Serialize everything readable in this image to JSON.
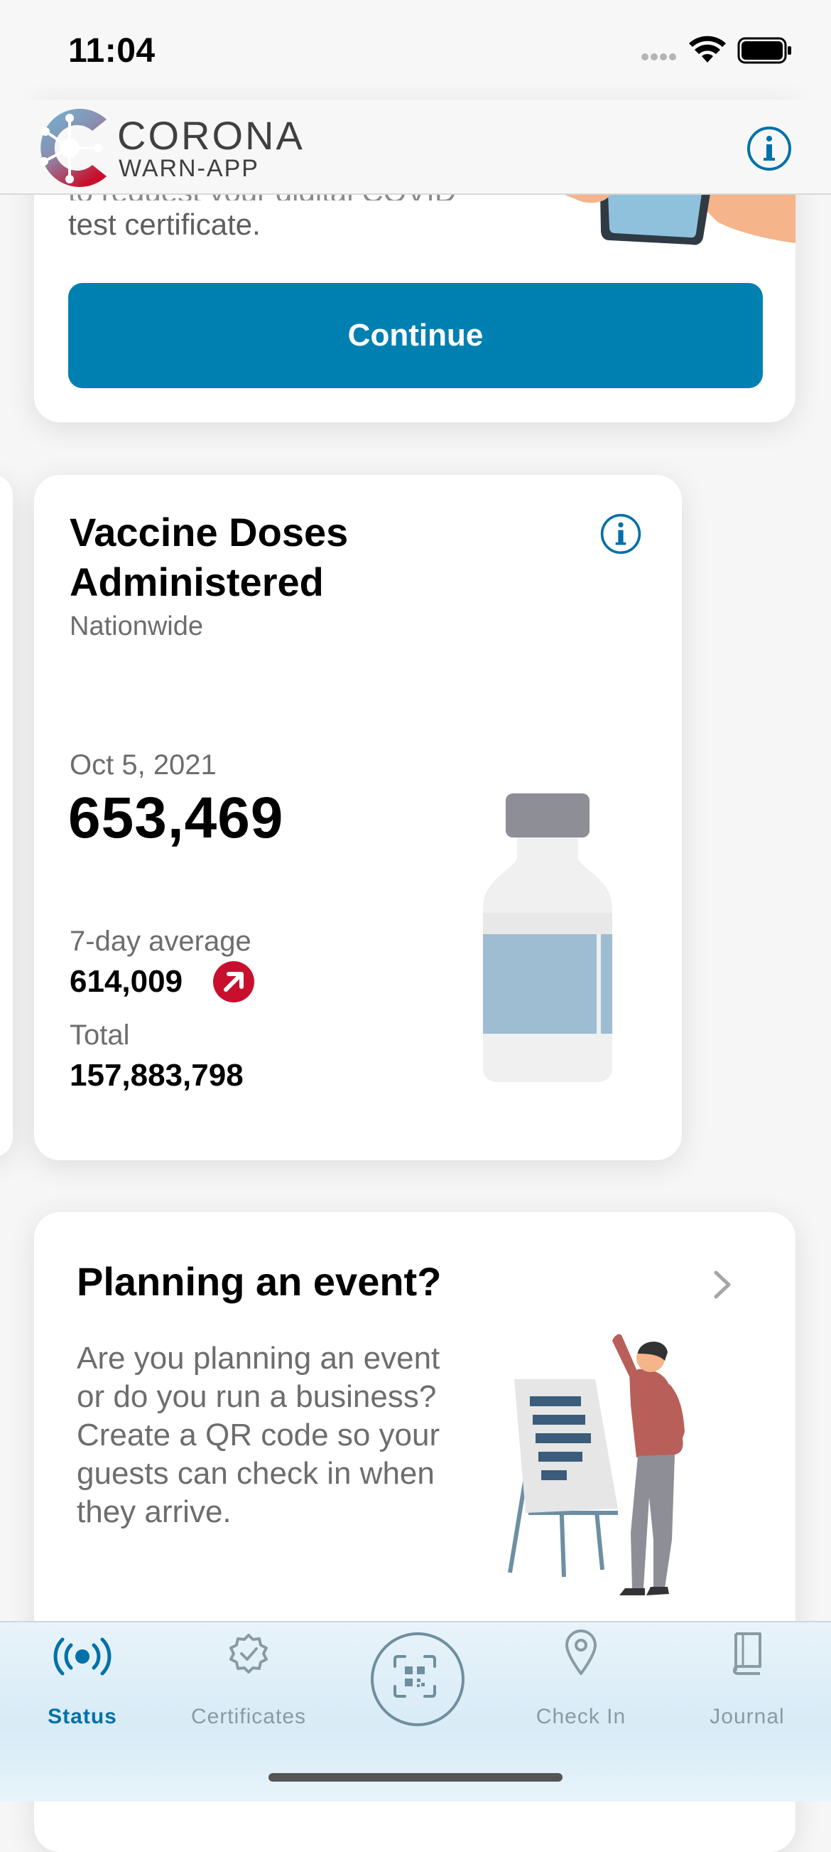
{
  "status_bar": {
    "time": "11:04"
  },
  "header": {
    "app_name_line1": "CORONA",
    "app_name_line2": "WARN-APP"
  },
  "test_card": {
    "partial_text_above": "to request your digital COVID",
    "partial_text": "test certificate.",
    "continue_label": "Continue"
  },
  "vaccine_card": {
    "title": "Vaccine Doses Administered",
    "subtitle": "Nationwide",
    "date": "Oct 5, 2021",
    "value": "653,469",
    "avg_label": "7-day average",
    "avg_value": "614,009",
    "trend": "up",
    "total_label": "Total",
    "total_value": "157,883,798"
  },
  "event_card": {
    "title": "Planning an event?",
    "text": "Are you planning an event or do you run a business? Create a QR code so your guests can check in when they arrive."
  },
  "tab_bar": {
    "tabs": [
      {
        "label": "Status",
        "icon": "radio-waves-icon",
        "active": true
      },
      {
        "label": "Certificates",
        "icon": "certificate-badge-icon",
        "active": false
      },
      {
        "label": "Check In",
        "icon": "location-pin-icon",
        "active": false
      },
      {
        "label": "Journal",
        "icon": "book-icon",
        "active": false
      }
    ],
    "center_button_icon": "qr-scan-icon"
  },
  "colors": {
    "accent": "#0080b0",
    "trend_red": "#c8102e"
  }
}
